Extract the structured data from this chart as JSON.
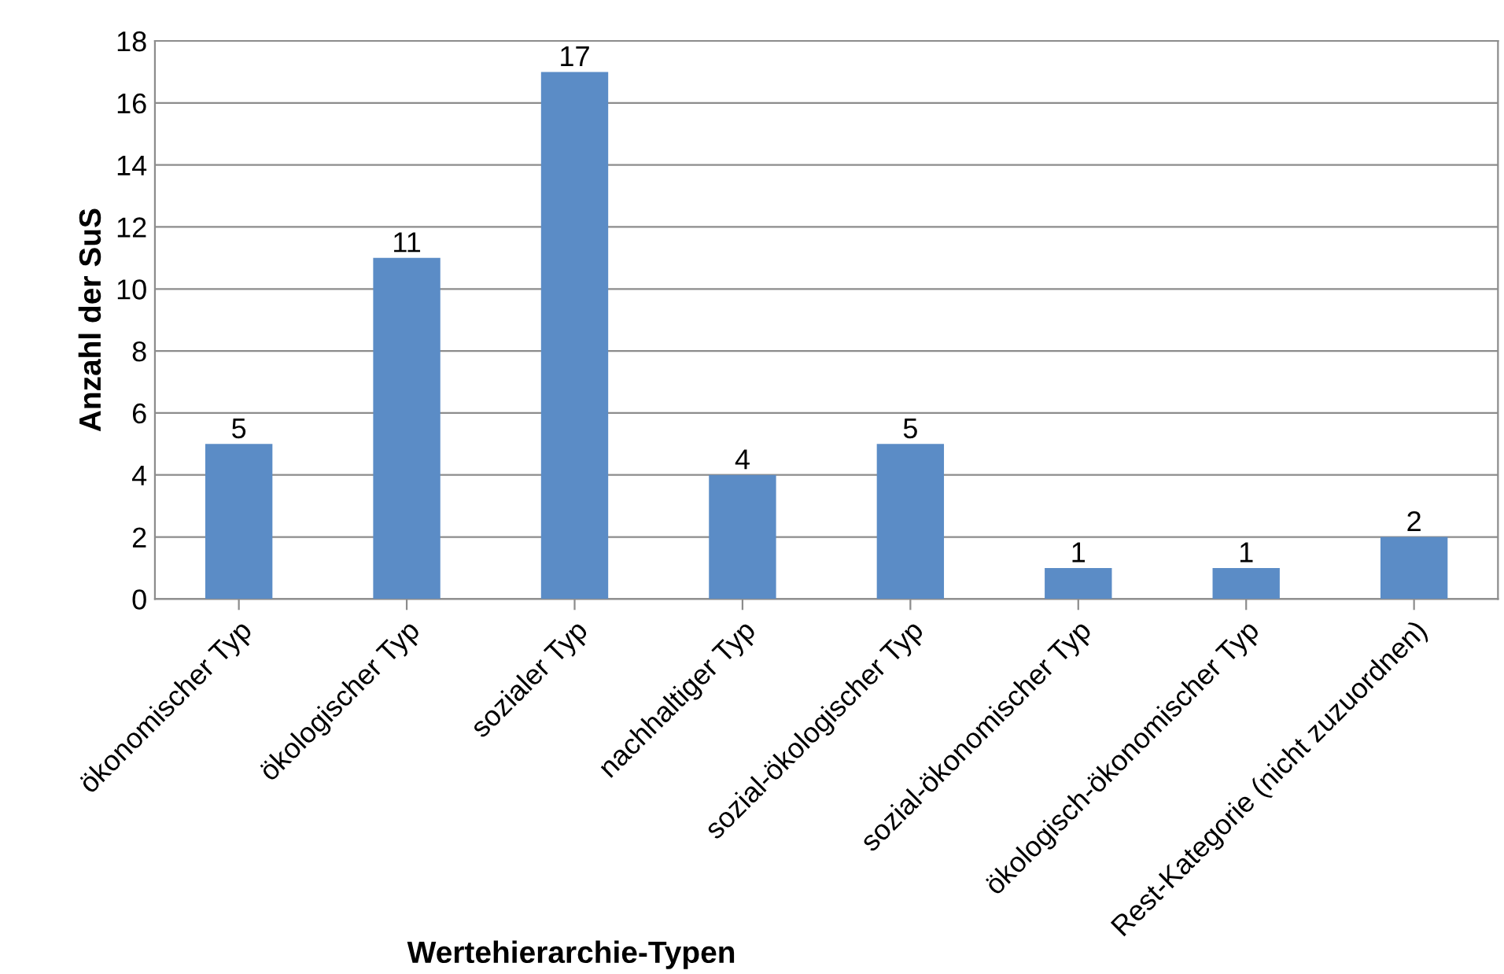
{
  "chart_data": {
    "type": "bar",
    "categories": [
      "ökonomischer Typ",
      "ökologischer Typ",
      "sozialer Typ",
      "nachhaltiger Typ",
      "sozial-ökologischer Typ",
      "sozial-ökonomischer Typ",
      "ökologisch-ökonomischer Typ",
      "Rest-Kategorie (nicht zuzuordnen)"
    ],
    "values": [
      5,
      11,
      17,
      4,
      5,
      1,
      1,
      2
    ],
    "color": "#5b8cc6",
    "xlabel": "Wertehierarchie-Typen",
    "ylabel": "Anzahl der SuS",
    "ylim": [
      0,
      18
    ],
    "yticks": [
      0,
      2,
      4,
      6,
      8,
      10,
      12,
      14,
      16,
      18
    ],
    "grid": "y",
    "data_labels": true
  }
}
